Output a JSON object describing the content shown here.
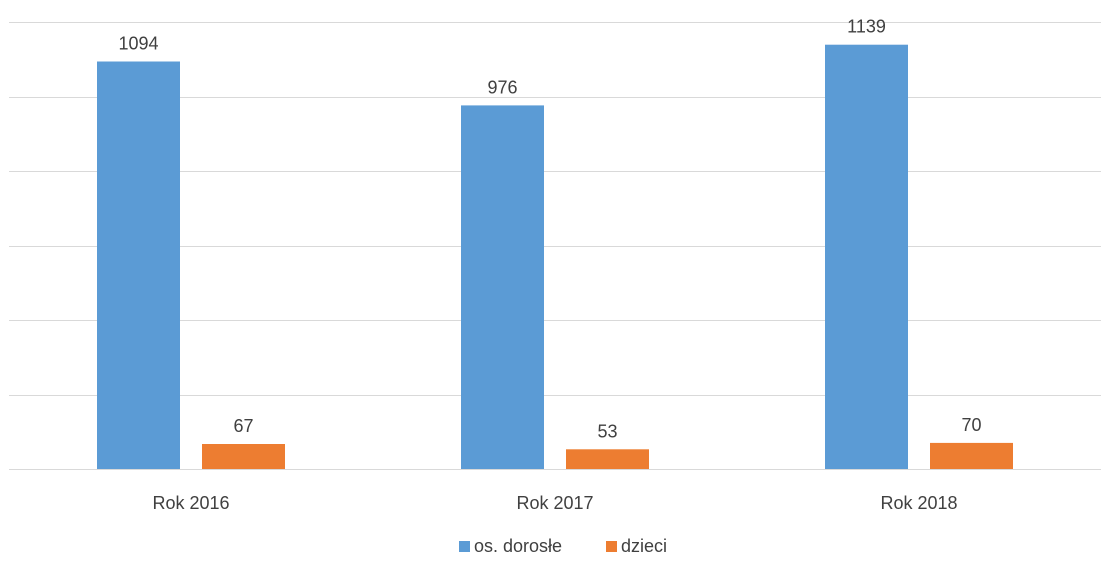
{
  "chart_data": {
    "type": "bar",
    "categories": [
      "Rok 2016",
      "Rok 2017",
      "Rok 2018"
    ],
    "series": [
      {
        "name": "os. dorosłe",
        "values": [
          1094,
          976,
          1139
        ],
        "color": "#5B9BD5"
      },
      {
        "name": "dzieci",
        "values": [
          67,
          53,
          70
        ],
        "color": "#ED7D31"
      }
    ],
    "ylim": [
      0,
      1200
    ],
    "grid": true,
    "legend": "bottom",
    "data_labels": true,
    "title": "",
    "xlabel": "",
    "ylabel": ""
  }
}
